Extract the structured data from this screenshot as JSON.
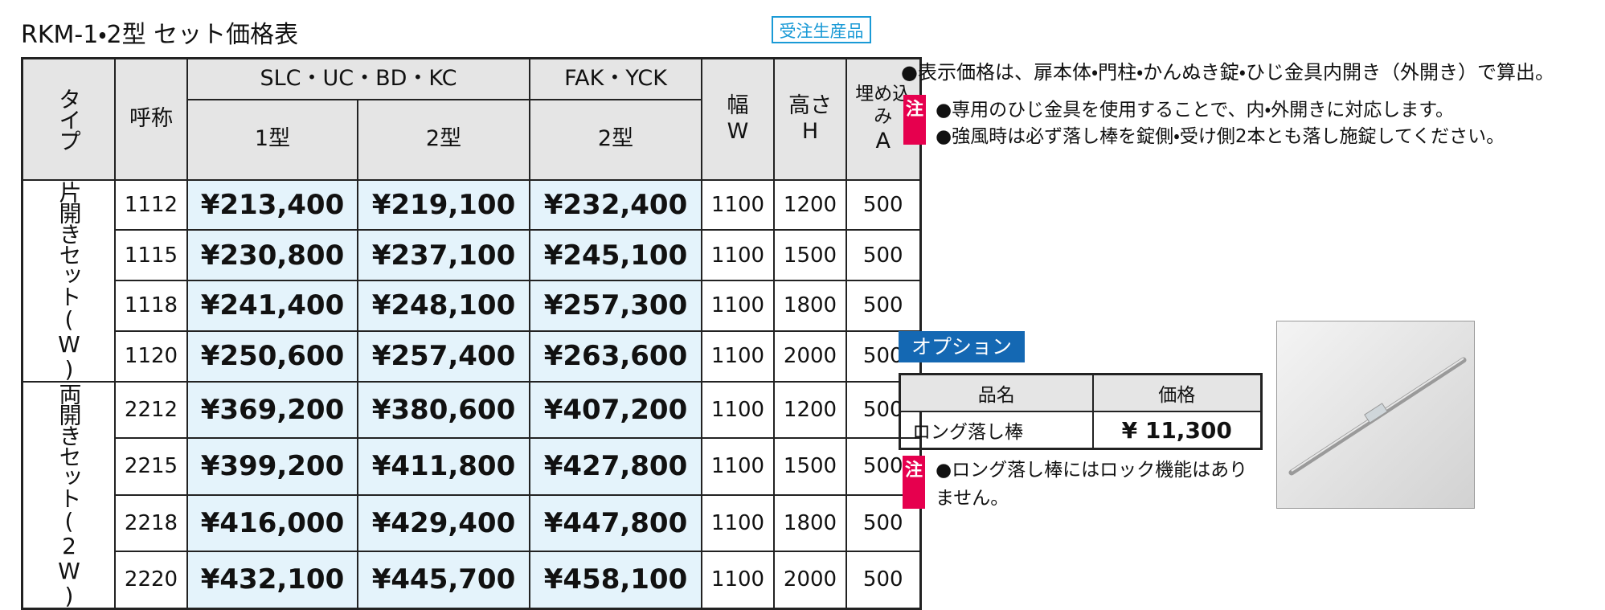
{
  "header": {
    "title": "RKM-1・2型 セット価格表",
    "badge": "受注生産品"
  },
  "price_table": {
    "headers": {
      "type": "タイプ",
      "name": "呼称",
      "group1": "SLC・UC・BD・KC",
      "group2": "FAK・YCK",
      "model1": "1型",
      "model2": "2型",
      "model3": "2型",
      "width": [
        "幅",
        "W"
      ],
      "height": [
        "高さ",
        "H"
      ],
      "embed": [
        "埋め込み",
        "A"
      ]
    },
    "groups": [
      {
        "label": "片開きセット(W)",
        "rows": [
          [
            "1112",
            "¥213,400",
            "¥219,100",
            "¥232,400",
            "1100",
            "1200",
            "500"
          ],
          [
            "1115",
            "¥230,800",
            "¥237,100",
            "¥245,100",
            "1100",
            "1500",
            "500"
          ],
          [
            "1118",
            "¥241,400",
            "¥248,100",
            "¥257,300",
            "1100",
            "1800",
            "500"
          ],
          [
            "1120",
            "¥250,600",
            "¥257,400",
            "¥263,600",
            "1100",
            "2000",
            "500"
          ]
        ]
      },
      {
        "label": "両開きセット(2W)",
        "rows": [
          [
            "2212",
            "¥369,200",
            "¥380,600",
            "¥407,200",
            "1100",
            "1200",
            "500"
          ],
          [
            "2215",
            "¥399,200",
            "¥411,800",
            "¥427,800",
            "1100",
            "1500",
            "500"
          ],
          [
            "2218",
            "¥416,000",
            "¥429,400",
            "¥447,800",
            "1100",
            "1800",
            "500"
          ],
          [
            "2220",
            "¥432,100",
            "¥445,700",
            "¥458,100",
            "1100",
            "2000",
            "500"
          ]
        ]
      }
    ]
  },
  "notes": {
    "main": "●表示価格は、扉本体・門柱・かんぬき錠・ひじ金具内開き（外開き）で算出。",
    "mark": "注",
    "items": [
      "●専用のひじ金具を使用することで、内・外開きに対応します。",
      "●強風時は必ず落し棒を錠側・受け側2本とも落し施錠してください。"
    ]
  },
  "option": {
    "title": "オプション",
    "headers": [
      "品名",
      "価格"
    ],
    "row": [
      "ロング落し棒",
      "¥ 11,300"
    ],
    "mark": "注",
    "note": "●ロング落し棒にはロック機能はありません。"
  }
}
